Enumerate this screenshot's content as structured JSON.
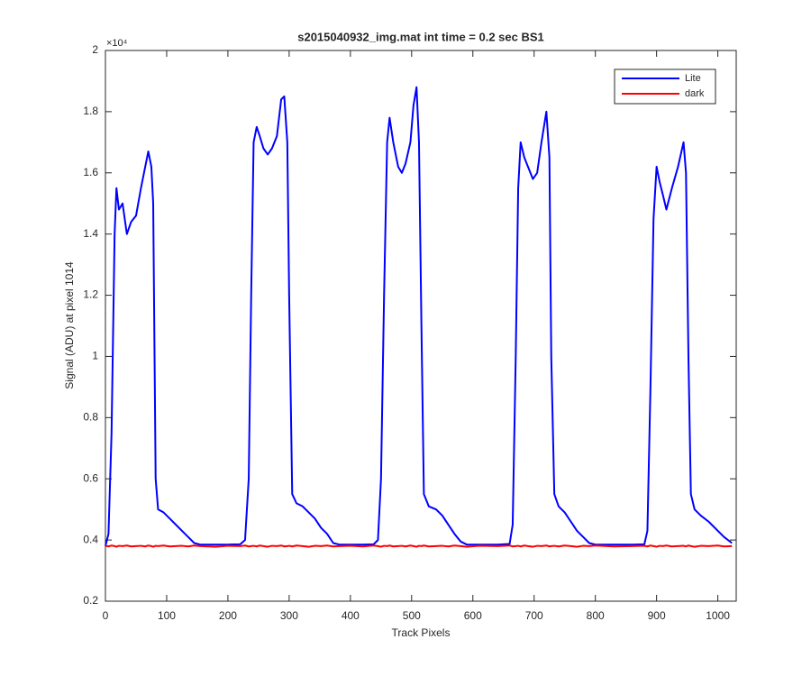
{
  "chart_data": {
    "type": "line",
    "title": "s2015040932_img.mat int time = 0.2 sec   BS1",
    "x_label": "Track Pixels",
    "y_label": "Signal (ADU) at pixel 1014",
    "y_multiplier_label": "×10⁴",
    "xlim": [
      0,
      1030
    ],
    "xticks": [
      0,
      100,
      200,
      300,
      400,
      500,
      600,
      700,
      800,
      900,
      1000
    ],
    "ylim": [
      0.2,
      2
    ],
    "yticks": [
      0.2,
      0.4,
      0.6,
      0.8,
      1,
      1.2,
      1.4,
      1.6,
      1.8,
      2
    ],
    "legend_position": "upper right",
    "x": [
      0,
      5,
      10,
      15,
      18,
      22,
      28,
      35,
      42,
      50,
      58,
      65,
      70,
      75,
      78,
      82,
      86,
      95,
      105,
      115,
      125,
      135,
      145,
      155,
      180,
      200,
      220,
      228,
      234,
      238,
      242,
      247,
      252,
      258,
      265,
      272,
      280,
      287,
      292,
      297,
      300,
      305,
      312,
      322,
      332,
      342,
      352,
      362,
      372,
      382,
      400,
      420,
      438,
      445,
      450,
      455,
      460,
      464,
      470,
      478,
      484,
      490,
      498,
      503,
      508,
      512,
      516,
      520,
      528,
      540,
      550,
      560,
      570,
      580,
      590,
      610,
      640,
      660,
      665,
      670,
      674,
      678,
      684,
      690,
      698,
      705,
      712,
      720,
      725,
      728,
      733,
      740,
      750,
      760,
      770,
      780,
      790,
      800,
      830,
      860,
      880,
      885,
      890,
      895,
      900,
      905,
      910,
      916,
      925,
      935,
      944,
      948,
      952,
      956,
      962,
      972,
      985,
      1000,
      1010,
      1023
    ],
    "series": [
      {
        "name": "Lite",
        "color": "#0000ff",
        "values": [
          0.38,
          0.42,
          0.75,
          1.4,
          1.55,
          1.48,
          1.5,
          1.4,
          1.44,
          1.46,
          1.55,
          1.62,
          1.67,
          1.62,
          1.5,
          0.6,
          0.5,
          0.49,
          0.47,
          0.45,
          0.43,
          0.41,
          0.39,
          0.385,
          0.385,
          0.385,
          0.386,
          0.4,
          0.6,
          1.2,
          1.7,
          1.75,
          1.72,
          1.68,
          1.66,
          1.68,
          1.72,
          1.84,
          1.85,
          1.7,
          1.2,
          0.55,
          0.52,
          0.51,
          0.49,
          0.47,
          0.44,
          0.42,
          0.39,
          0.385,
          0.385,
          0.385,
          0.386,
          0.4,
          0.6,
          1.2,
          1.7,
          1.78,
          1.7,
          1.62,
          1.6,
          1.63,
          1.7,
          1.82,
          1.88,
          1.7,
          1.1,
          0.55,
          0.51,
          0.5,
          0.48,
          0.45,
          0.42,
          0.395,
          0.385,
          0.385,
          0.385,
          0.387,
          0.45,
          1.0,
          1.55,
          1.7,
          1.65,
          1.62,
          1.58,
          1.6,
          1.7,
          1.8,
          1.65,
          1.0,
          0.55,
          0.51,
          0.49,
          0.46,
          0.43,
          0.41,
          0.39,
          0.385,
          0.385,
          0.385,
          0.386,
          0.43,
          0.9,
          1.45,
          1.62,
          1.57,
          1.53,
          1.48,
          1.55,
          1.62,
          1.7,
          1.6,
          1.0,
          0.55,
          0.5,
          0.48,
          0.46,
          0.43,
          0.41,
          0.39
        ]
      },
      {
        "name": "dark",
        "color": "#ff0000",
        "values": [
          0.381,
          0.379,
          0.382,
          0.38,
          0.378,
          0.381,
          0.38,
          0.382,
          0.379,
          0.38,
          0.381,
          0.379,
          0.382,
          0.38,
          0.378,
          0.381,
          0.38,
          0.382,
          0.379,
          0.38,
          0.381,
          0.379,
          0.382,
          0.38,
          0.378,
          0.381,
          0.38,
          0.382,
          0.379,
          0.38,
          0.381,
          0.379,
          0.382,
          0.38,
          0.378,
          0.381,
          0.38,
          0.382,
          0.379,
          0.38,
          0.381,
          0.379,
          0.382,
          0.38,
          0.378,
          0.381,
          0.38,
          0.382,
          0.379,
          0.38,
          0.381,
          0.379,
          0.382,
          0.38,
          0.378,
          0.381,
          0.38,
          0.382,
          0.379,
          0.38,
          0.381,
          0.379,
          0.382,
          0.38,
          0.378,
          0.381,
          0.38,
          0.382,
          0.379,
          0.38,
          0.381,
          0.379,
          0.382,
          0.38,
          0.378,
          0.381,
          0.38,
          0.382,
          0.379,
          0.38,
          0.381,
          0.379,
          0.382,
          0.38,
          0.378,
          0.381,
          0.38,
          0.382,
          0.379,
          0.38,
          0.381,
          0.379,
          0.382,
          0.38,
          0.378,
          0.381,
          0.38,
          0.382,
          0.379,
          0.38,
          0.381,
          0.379,
          0.382,
          0.38,
          0.378,
          0.381,
          0.38,
          0.382,
          0.379,
          0.38,
          0.381,
          0.379,
          0.382,
          0.38,
          0.378,
          0.381,
          0.38,
          0.382,
          0.379,
          0.38
        ]
      }
    ]
  }
}
